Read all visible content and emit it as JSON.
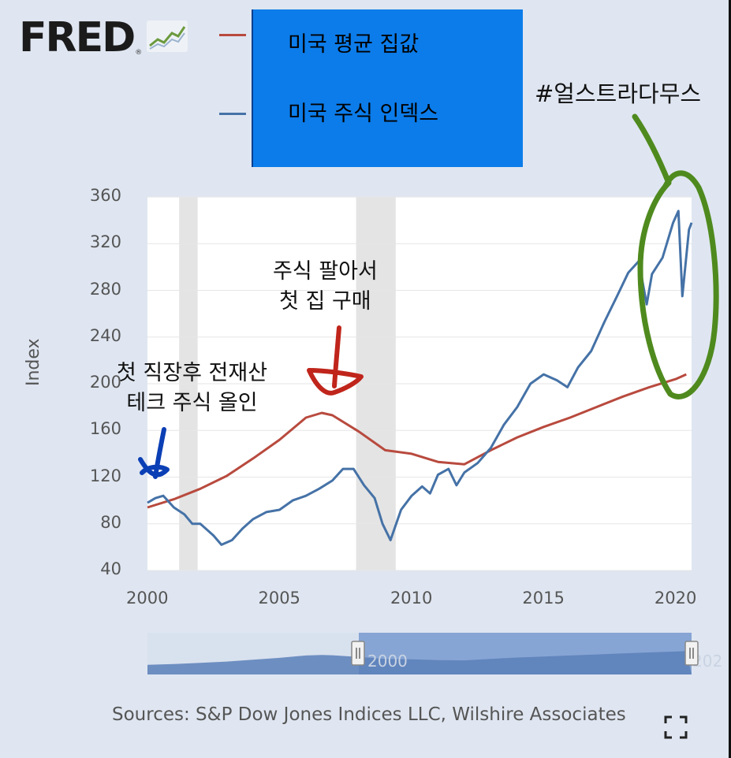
{
  "brand": {
    "name": "FRED"
  },
  "legend": {
    "items": [
      {
        "label": "미국 평균 집값",
        "color": "#b84a3e"
      },
      {
        "label": "미국 주식 인덱스",
        "color": "#4572a7"
      }
    ],
    "box_color": "#0c7cea"
  },
  "annotations": {
    "hashtag": "#얼스트라다무스",
    "first_job_line1": "첫 직장후 전재산",
    "first_job_line2": "테크 주식 올인",
    "sold_line1": "주식 팔아서",
    "sold_line2": "첫 집 구매",
    "colors": {
      "blue_arrow": "#0b3fb5",
      "red_arrow": "#c0251b",
      "green_circle": "#4f8a1e"
    }
  },
  "source_text": "Sources: S&P Dow Jones Indices LLC, Wilshire Associates",
  "navigator": {
    "left_label": "2000",
    "right_label": "202"
  },
  "chart_data": {
    "type": "line",
    "ylabel": "Index",
    "ylim": [
      40,
      360
    ],
    "yticks": [
      "40",
      "80",
      "120",
      "160",
      "200",
      "240",
      "280",
      "320",
      "360"
    ],
    "xlim": [
      2000,
      2020.6
    ],
    "xticks": [
      "2000",
      "2005",
      "2010",
      "2015",
      "2020"
    ],
    "recessions": [
      [
        2001.2,
        2001.9
      ],
      [
        2007.9,
        2009.4
      ]
    ],
    "grid": true,
    "series": [
      {
        "name": "미국 평균 집값",
        "color": "#b84a3e",
        "x": [
          2000,
          2001,
          2002,
          2003,
          2004,
          2005,
          2006,
          2006.6,
          2007,
          2008,
          2009,
          2010,
          2011,
          2012,
          2013,
          2014,
          2015,
          2016,
          2017,
          2018,
          2019,
          2020,
          2020.4
        ],
        "values": [
          94,
          101,
          110,
          121,
          136,
          152,
          171,
          175,
          173,
          159,
          143,
          140,
          133,
          131,
          143,
          154,
          163,
          171,
          180,
          189,
          197,
          204,
          208
        ]
      },
      {
        "name": "미국 주식 인덱스",
        "color": "#4572a7",
        "x": [
          2000,
          2000.3,
          2000.6,
          2001,
          2001.4,
          2001.7,
          2002,
          2002.5,
          2002.8,
          2003.2,
          2003.6,
          2004,
          2004.5,
          2005,
          2005.5,
          2006,
          2006.5,
          2007,
          2007.4,
          2007.8,
          2008.2,
          2008.6,
          2008.9,
          2009.2,
          2009.6,
          2010,
          2010.4,
          2010.7,
          2011,
          2011.4,
          2011.7,
          2012,
          2012.5,
          2013,
          2013.5,
          2014,
          2014.5,
          2015,
          2015.5,
          2015.9,
          2016.3,
          2016.8,
          2017.3,
          2017.8,
          2018.2,
          2018.6,
          2018.9,
          2019.1,
          2019.5,
          2019.9,
          2020.1,
          2020.25,
          2020.5,
          2020.6
        ],
        "values": [
          98,
          102,
          104,
          94,
          88,
          80,
          80,
          70,
          62,
          66,
          76,
          84,
          90,
          92,
          100,
          104,
          110,
          117,
          127,
          127,
          113,
          102,
          80,
          66,
          92,
          104,
          112,
          106,
          122,
          127,
          113,
          124,
          132,
          145,
          165,
          180,
          200,
          208,
          203,
          197,
          214,
          228,
          253,
          276,
          295,
          305,
          268,
          294,
          308,
          338,
          348,
          275,
          332,
          338
        ]
      }
    ]
  }
}
